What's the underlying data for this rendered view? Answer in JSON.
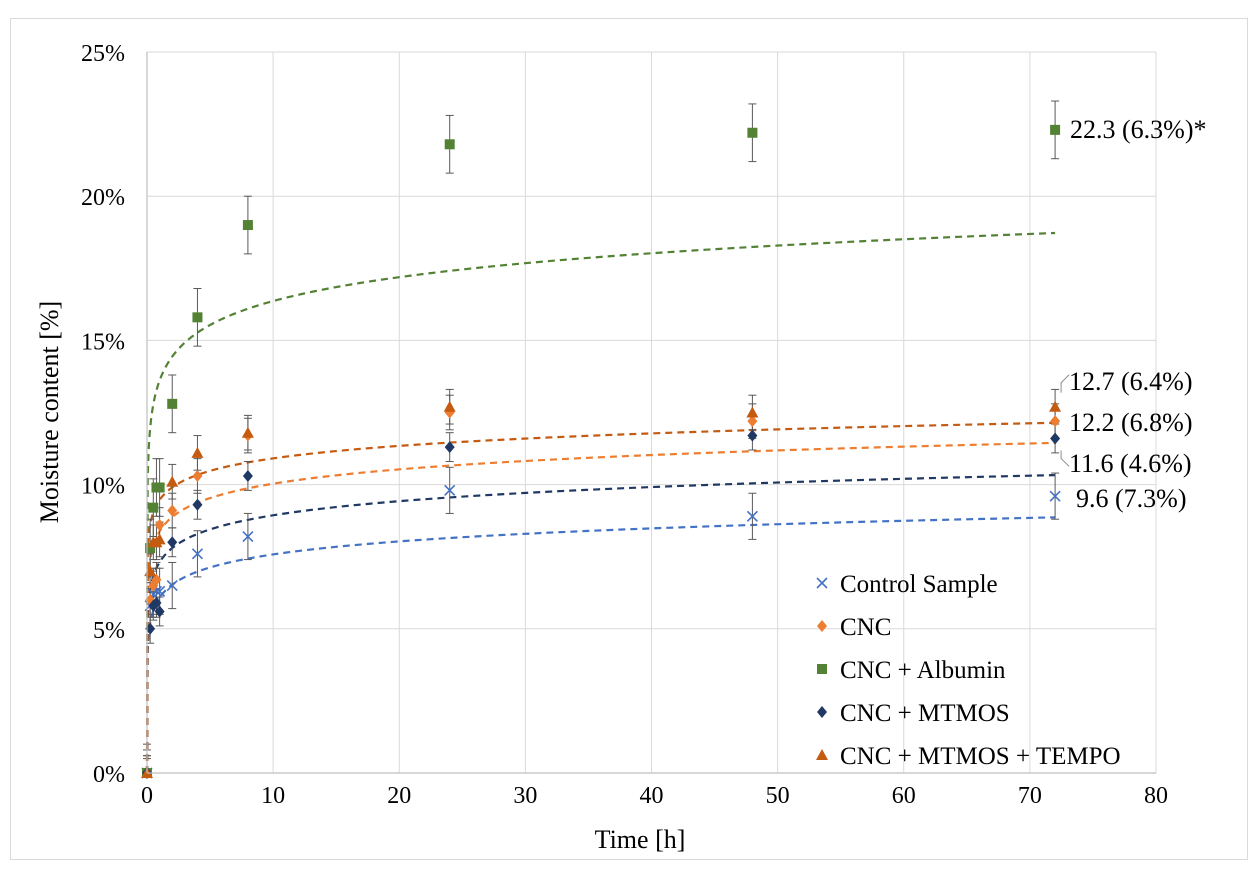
{
  "chart_data": {
    "type": "scatter",
    "title": "",
    "xlabel": "Time [h]",
    "ylabel": "Moisture content [%]",
    "xlim": [
      0,
      80
    ],
    "ylim": [
      0,
      0.25
    ],
    "x_ticks": [
      0,
      10,
      20,
      30,
      40,
      50,
      60,
      70,
      80
    ],
    "x_tick_labels": [
      "0",
      "10",
      "20",
      "30",
      "40",
      "50",
      "60",
      "70",
      "80"
    ],
    "y_ticks": [
      0,
      0.05,
      0.1,
      0.15,
      0.2,
      0.25
    ],
    "y_tick_labels": [
      "0%",
      "5%",
      "10%",
      "15%",
      "20%",
      "25%"
    ],
    "grid": true,
    "legend_position": "bottom-right",
    "x": [
      0,
      0.25,
      0.5,
      0.75,
      1,
      2,
      4,
      8,
      24,
      48,
      72
    ],
    "series": [
      {
        "name": "Control Sample",
        "color": "#4472c4",
        "marker": "x",
        "values": [
          0,
          0.058,
          0.062,
          0.063,
          0.063,
          0.065,
          0.076,
          0.082,
          0.098,
          0.089,
          0.096
        ],
        "errors": [
          0.008,
          0.008,
          0.008,
          0.008,
          0.008,
          0.008,
          0.008,
          0.008,
          0.008,
          0.008,
          0.008
        ],
        "fit": {
          "a": 0.0608,
          "b": 0.00651
        }
      },
      {
        "name": "CNC",
        "color": "#ed7d31",
        "marker": "diamond",
        "values": [
          0,
          0.06,
          0.065,
          0.067,
          0.086,
          0.091,
          0.103,
          0.117,
          0.125,
          0.122,
          0.122
        ],
        "errors": [
          0.006,
          0.006,
          0.006,
          0.006,
          0.006,
          0.006,
          0.006,
          0.006,
          0.006,
          0.006,
          0.006
        ],
        "fit": {
          "a": 0.0838,
          "b": 0.00717
        }
      },
      {
        "name": "CNC + Albumin",
        "color": "#548235",
        "marker": "square",
        "values": [
          0,
          0.078,
          0.092,
          0.099,
          0.099,
          0.128,
          0.158,
          0.19,
          0.218,
          0.222,
          0.223
        ],
        "errors": [
          0.01,
          0.01,
          0.01,
          0.01,
          0.01,
          0.01,
          0.01,
          0.01,
          0.01,
          0.01,
          0.01
        ],
        "fit": {
          "a": 0.1361,
          "b": 0.01196
        }
      },
      {
        "name": "CNC + MTMOS",
        "color": "#203864",
        "marker": "diamond",
        "values": [
          0,
          0.05,
          0.058,
          0.059,
          0.056,
          0.08,
          0.093,
          0.103,
          0.113,
          0.117,
          0.116
        ],
        "errors": [
          0.005,
          0.005,
          0.005,
          0.005,
          0.005,
          0.005,
          0.005,
          0.005,
          0.005,
          0.005,
          0.005
        ],
        "fit": {
          "a": 0.0731,
          "b": 0.00706
        }
      },
      {
        "name": "CNC + MTMOS + TEMPO",
        "color": "#c55a11",
        "marker": "triangle",
        "values": [
          0,
          0.07,
          0.08,
          0.08,
          0.081,
          0.101,
          0.111,
          0.118,
          0.127,
          0.125,
          0.127
        ],
        "errors": [
          0.006,
          0.006,
          0.006,
          0.006,
          0.006,
          0.006,
          0.006,
          0.006,
          0.006,
          0.006,
          0.006
        ],
        "fit": {
          "a": 0.0947,
          "b": 0.00625
        }
      }
    ],
    "annotations": [
      {
        "text": "22.3 (6.3%)*",
        "series": "CNC + Albumin",
        "x": 72,
        "y": 0.223
      },
      {
        "text": "12.7 (6.4%)",
        "series": "CNC + MTMOS + TEMPO",
        "x": 72,
        "y": 0.127
      },
      {
        "text": "12.2 (6.8%)",
        "series": "CNC",
        "x": 72,
        "y": 0.122
      },
      {
        "text": "11.6 (4.6%)",
        "series": "CNC + MTMOS",
        "x": 72,
        "y": 0.116
      },
      {
        "text": "9.6 (7.3%)",
        "series": "Control Sample",
        "x": 72,
        "y": 0.096
      }
    ]
  }
}
